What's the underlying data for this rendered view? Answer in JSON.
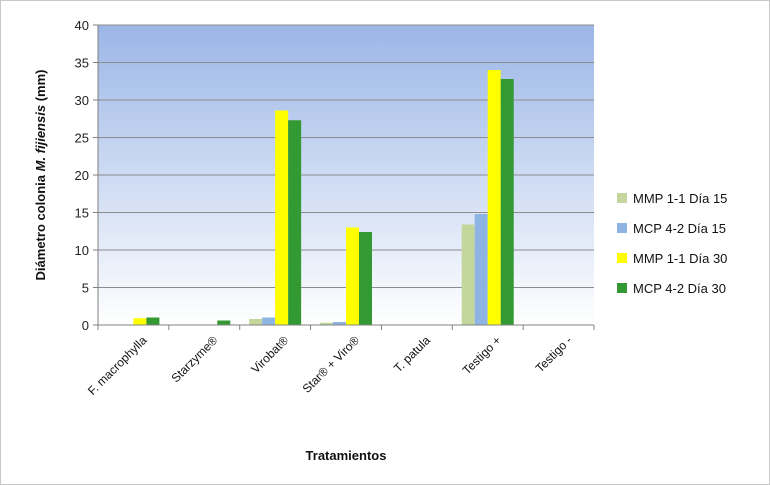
{
  "chart_data": {
    "type": "bar",
    "ylabel_parts": [
      "Diámetro colonia ",
      "M. fijiensis",
      " (mm)"
    ],
    "xlabel": "Tratamientos",
    "ylim": [
      0,
      40
    ],
    "yticks": [
      0,
      5,
      10,
      15,
      20,
      25,
      30,
      35,
      40
    ],
    "grid": true,
    "legend_position": "right",
    "categories": [
      "F. macrophylla",
      "Starzyme®",
      "Virobat®",
      "Star® + Viro®",
      "T. patula",
      "Testigo +",
      "Testigo -"
    ],
    "series": [
      {
        "name": "MMP 1-1 Día 15",
        "color": "#c3d69b",
        "values": [
          0,
          0,
          0.8,
          0.3,
          0,
          13.4,
          0
        ]
      },
      {
        "name": "MCP 4-2 Día 15",
        "color": "#8eb4e3",
        "values": [
          0,
          0,
          1.0,
          0.4,
          0,
          14.8,
          0
        ]
      },
      {
        "name": "MMP 1-1 Día 30",
        "color": "#ffff00",
        "values": [
          0.9,
          0,
          28.6,
          13.0,
          0,
          34.0,
          0
        ]
      },
      {
        "name": "MCP 4-2 Día 30",
        "color": "#339933",
        "values": [
          1.0,
          0.6,
          27.3,
          12.4,
          0,
          32.8,
          0
        ]
      }
    ]
  }
}
